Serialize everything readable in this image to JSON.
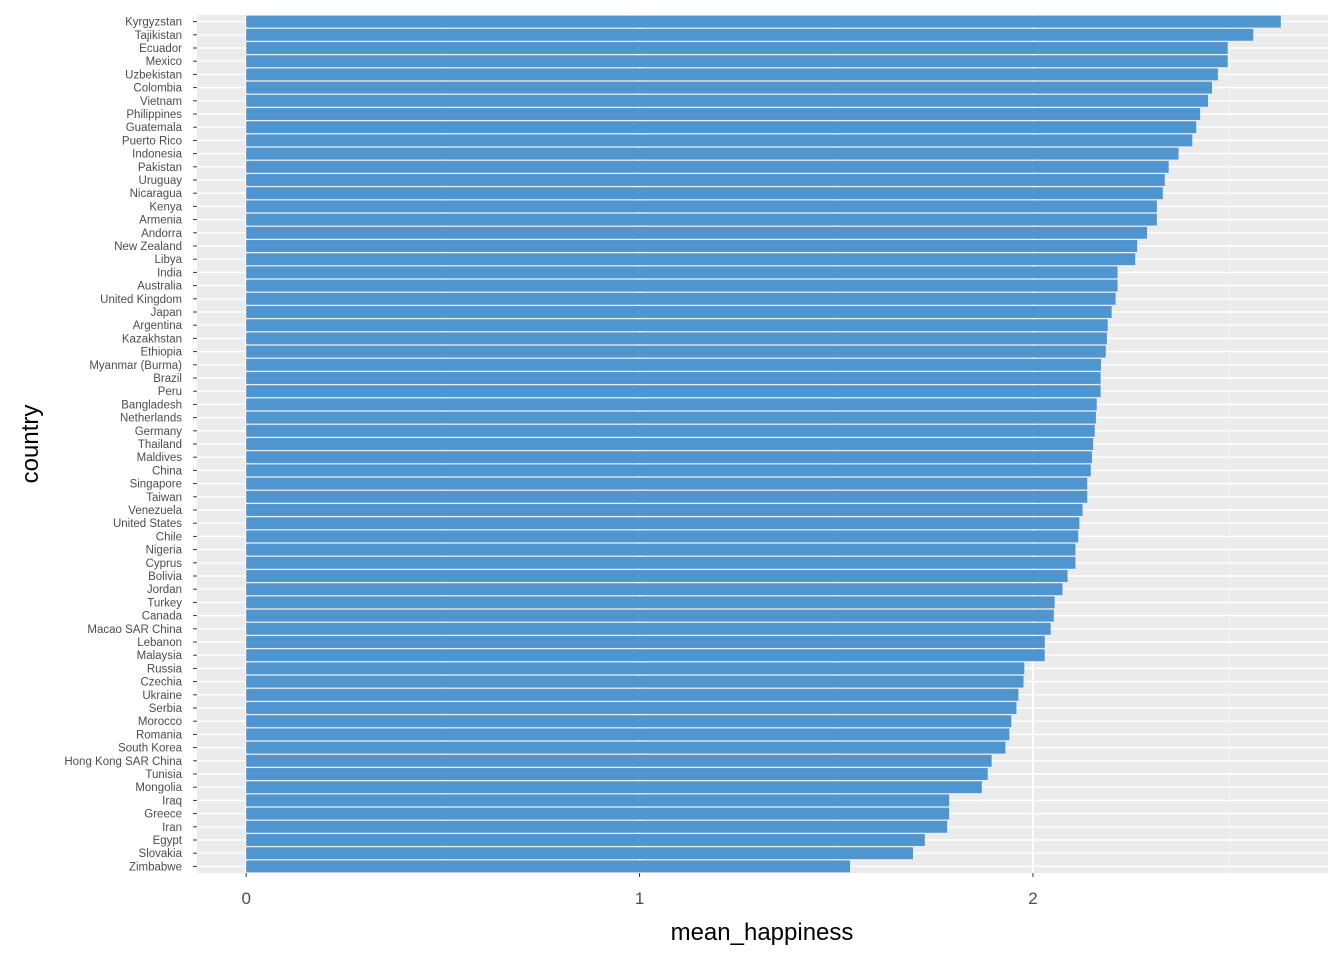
{
  "chart_data": {
    "type": "bar",
    "orientation": "horizontal",
    "xlabel": "mean_happiness",
    "ylabel": "country",
    "xlim": [
      -0.125,
      2.75
    ],
    "xticks": [
      0,
      1,
      2
    ],
    "grid": true,
    "colors": {
      "bar": "#4f95cf",
      "panel": "#ebebeb",
      "gridMajor": "#ffffff",
      "gridMinor": "#f5f5f5",
      "tick": "#333333"
    },
    "categories": [
      "Kyrgyzstan",
      "Tajikistan",
      "Ecuador",
      "Mexico",
      "Uzbekistan",
      "Colombia",
      "Vietnam",
      "Philippines",
      "Guatemala",
      "Puerto Rico",
      "Indonesia",
      "Pakistan",
      "Uruguay",
      "Nicaragua",
      "Kenya",
      "Armenia",
      "Andorra",
      "New Zealand",
      "Libya",
      "India",
      "Australia",
      "United Kingdom",
      "Japan",
      "Argentina",
      "Kazakhstan",
      "Ethiopia",
      "Myanmar (Burma)",
      "Brazil",
      "Peru",
      "Bangladesh",
      "Netherlands",
      "Germany",
      "Thailand",
      "Maldives",
      "China",
      "Singapore",
      "Taiwan",
      "Venezuela",
      "United States",
      "Chile",
      "Nigeria",
      "Cyprus",
      "Bolivia",
      "Jordan",
      "Turkey",
      "Canada",
      "Macao SAR China",
      "Lebanon",
      "Malaysia",
      "Russia",
      "Czechia",
      "Ukraine",
      "Serbia",
      "Morocco",
      "Romania",
      "South Korea",
      "Hong Kong SAR China",
      "Tunisia",
      "Mongolia",
      "Iraq",
      "Greece",
      "Iran",
      "Egypt",
      "Slovakia",
      "Zimbabwe"
    ],
    "values": [
      2.63,
      2.56,
      2.495,
      2.495,
      2.47,
      2.455,
      2.445,
      2.425,
      2.415,
      2.405,
      2.37,
      2.345,
      2.335,
      2.33,
      2.315,
      2.315,
      2.29,
      2.265,
      2.26,
      2.215,
      2.215,
      2.21,
      2.2,
      2.19,
      2.188,
      2.185,
      2.173,
      2.172,
      2.172,
      2.162,
      2.16,
      2.157,
      2.153,
      2.15,
      2.147,
      2.138,
      2.138,
      2.126,
      2.118,
      2.115,
      2.108,
      2.108,
      2.088,
      2.075,
      2.055,
      2.053,
      2.045,
      2.03,
      2.03,
      1.978,
      1.976,
      1.963,
      1.958,
      1.945,
      1.94,
      1.93,
      1.895,
      1.885,
      1.87,
      1.787,
      1.787,
      1.782,
      1.725,
      1.695,
      1.535
    ]
  }
}
